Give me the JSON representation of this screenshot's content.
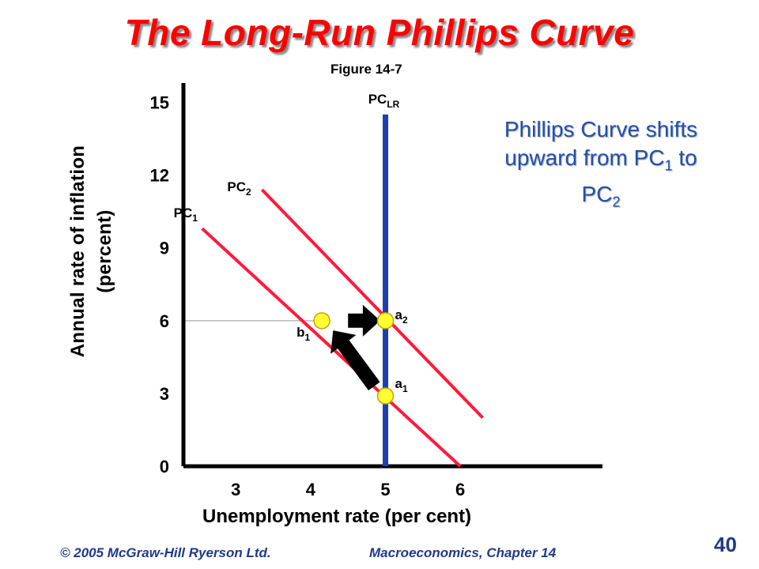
{
  "slide": {
    "title": "The Long-Run Phillips Curve",
    "figure_label": "Figure 14-7",
    "annotation_line1": "Phillips Curve shifts",
    "annotation_line2a": "upward from PC",
    "annotation_line2_sub": "1",
    "annotation_line2b": " to",
    "annotation_line3a": "PC",
    "annotation_line3_sub": "2",
    "footer_left": "© 2005 McGraw-Hill Ryerson Ltd.",
    "footer_right": "Macroeconomics, Chapter 14",
    "page_number": "40"
  },
  "chart_data": {
    "type": "line",
    "xlabel": "Unemployment rate (per cent)",
    "ylabel_line1": "Annual rate of inflation",
    "ylabel_line2": "(percent)",
    "x_ticks": [
      3,
      4,
      5,
      6
    ],
    "y_ticks": [
      0,
      3,
      6,
      9,
      12,
      15
    ],
    "xlim": [
      2.3,
      7.9
    ],
    "ylim": [
      0,
      15.8
    ],
    "series": [
      {
        "name": "PC",
        "sub": "1",
        "color": "#ff1a3c",
        "x": [
          2.55,
          6.0
        ],
        "y": [
          9.8,
          0.0
        ]
      },
      {
        "name": "PC",
        "sub": "2",
        "color": "#ff1a3c",
        "x": [
          3.35,
          6.3
        ],
        "y": [
          11.4,
          2.0
        ]
      },
      {
        "name": "PC",
        "sub": "LR",
        "color": "#1c3fae",
        "x": [
          5.0,
          5.0
        ],
        "y": [
          0.0,
          14.5
        ]
      }
    ],
    "points": [
      {
        "name": "b",
        "sub": "1",
        "x": 4.15,
        "y": 6.0
      },
      {
        "name": "a",
        "sub": "2",
        "x": 5.0,
        "y": 6.0
      },
      {
        "name": "a",
        "sub": "1",
        "x": 5.0,
        "y": 2.9
      }
    ],
    "arrows": [
      {
        "from": [
          4.5,
          6.0
        ],
        "to": [
          4.93,
          6.0
        ]
      },
      {
        "from": [
          4.85,
          3.3
        ],
        "to": [
          4.3,
          5.6
        ]
      }
    ],
    "guide_y": 6,
    "colors": {
      "axis": "#000000",
      "point_fill": "#ffff33",
      "point_stroke": "#c8a000",
      "guide": "#999999"
    }
  }
}
